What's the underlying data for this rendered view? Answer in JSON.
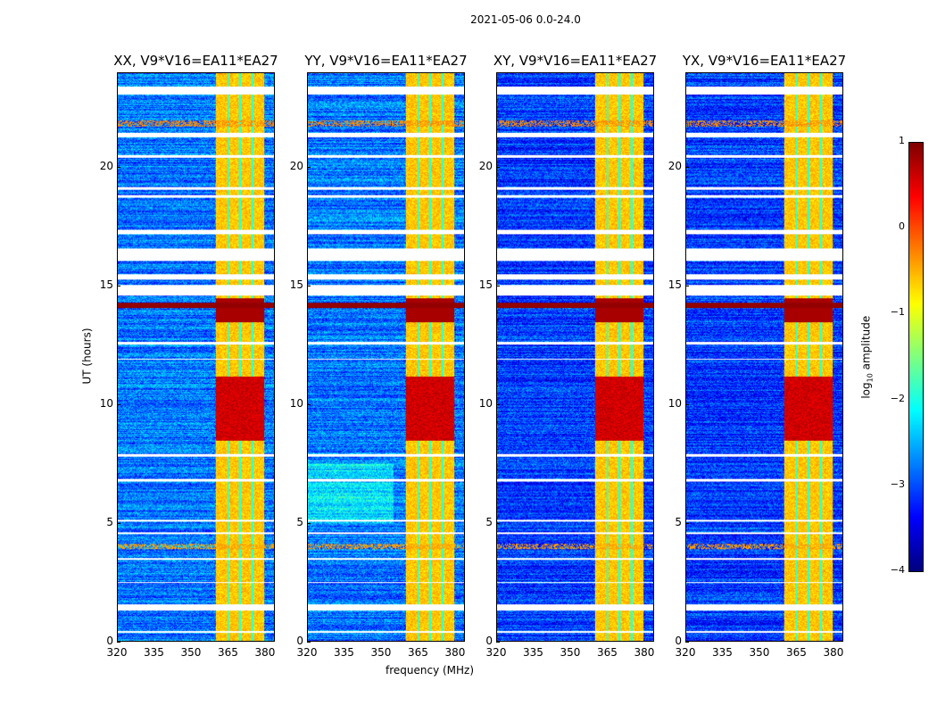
{
  "suptitle": "2021-05-06 0.0-24.0",
  "chart_data": {
    "type": "heatmap",
    "panels": [
      {
        "title": "XX, V9*V16=EA11*EA27"
      },
      {
        "title": "YY, V9*V16=EA11*EA27"
      },
      {
        "title": "XY, V9*V16=EA11*EA27"
      },
      {
        "title": "YX, V9*V16=EA11*EA27"
      }
    ],
    "xlabel": "frequency (MHz)",
    "ylabel": "UT (hours)",
    "xlim": [
      320,
      384
    ],
    "ylim": [
      0,
      24
    ],
    "xticks": [
      "320",
      "335",
      "350",
      "365",
      "380"
    ],
    "xtick_values": [
      320,
      335,
      350,
      365,
      380
    ],
    "yticks": [
      "0",
      "5",
      "10",
      "15",
      "20"
    ],
    "ytick_values": [
      0,
      5,
      10,
      15,
      20
    ],
    "colorbar": {
      "label_prefix": "log",
      "label_sub": "10",
      "label_suffix": " amplitude",
      "range": [
        -4,
        1
      ],
      "ticks": [
        "−4",
        "−3",
        "−2",
        "−1",
        "0",
        "1"
      ],
      "tick_values": [
        -4,
        -3,
        -2,
        -1,
        0,
        1
      ],
      "colormap": "jet"
    },
    "background_level": -2.8,
    "strong_band_mhz": [
      360,
      380
    ],
    "strong_band_level": -0.6,
    "band_channel_gaps_mhz": [
      365,
      370,
      375
    ],
    "hot_period_hours": [
      8.5,
      11.2
    ],
    "hot_period_level": 0.6,
    "rfi_rows_hours": [
      {
        "hour": 14.2,
        "level": 0.9
      },
      {
        "hour": 4.0,
        "level": -0.4
      },
      {
        "hour": 21.9,
        "level": -0.3
      }
    ],
    "flagged_hours": [
      [
        23.1,
        23.45
      ],
      [
        21.3,
        21.5
      ],
      [
        20.45,
        20.55
      ],
      [
        19.1,
        19.2
      ],
      [
        18.75,
        18.85
      ],
      [
        17.2,
        17.4
      ],
      [
        16.1,
        16.6
      ],
      [
        15.3,
        15.5
      ],
      [
        14.6,
        15.05
      ],
      [
        12.55,
        12.65
      ],
      [
        11.9,
        11.95
      ],
      [
        7.8,
        7.9
      ],
      [
        6.75,
        6.85
      ],
      [
        5.05,
        5.15
      ],
      [
        4.55,
        4.62
      ],
      [
        3.45,
        3.5
      ],
      [
        2.45,
        2.5
      ],
      [
        1.3,
        1.55
      ],
      [
        0.35,
        0.42
      ]
    ]
  }
}
